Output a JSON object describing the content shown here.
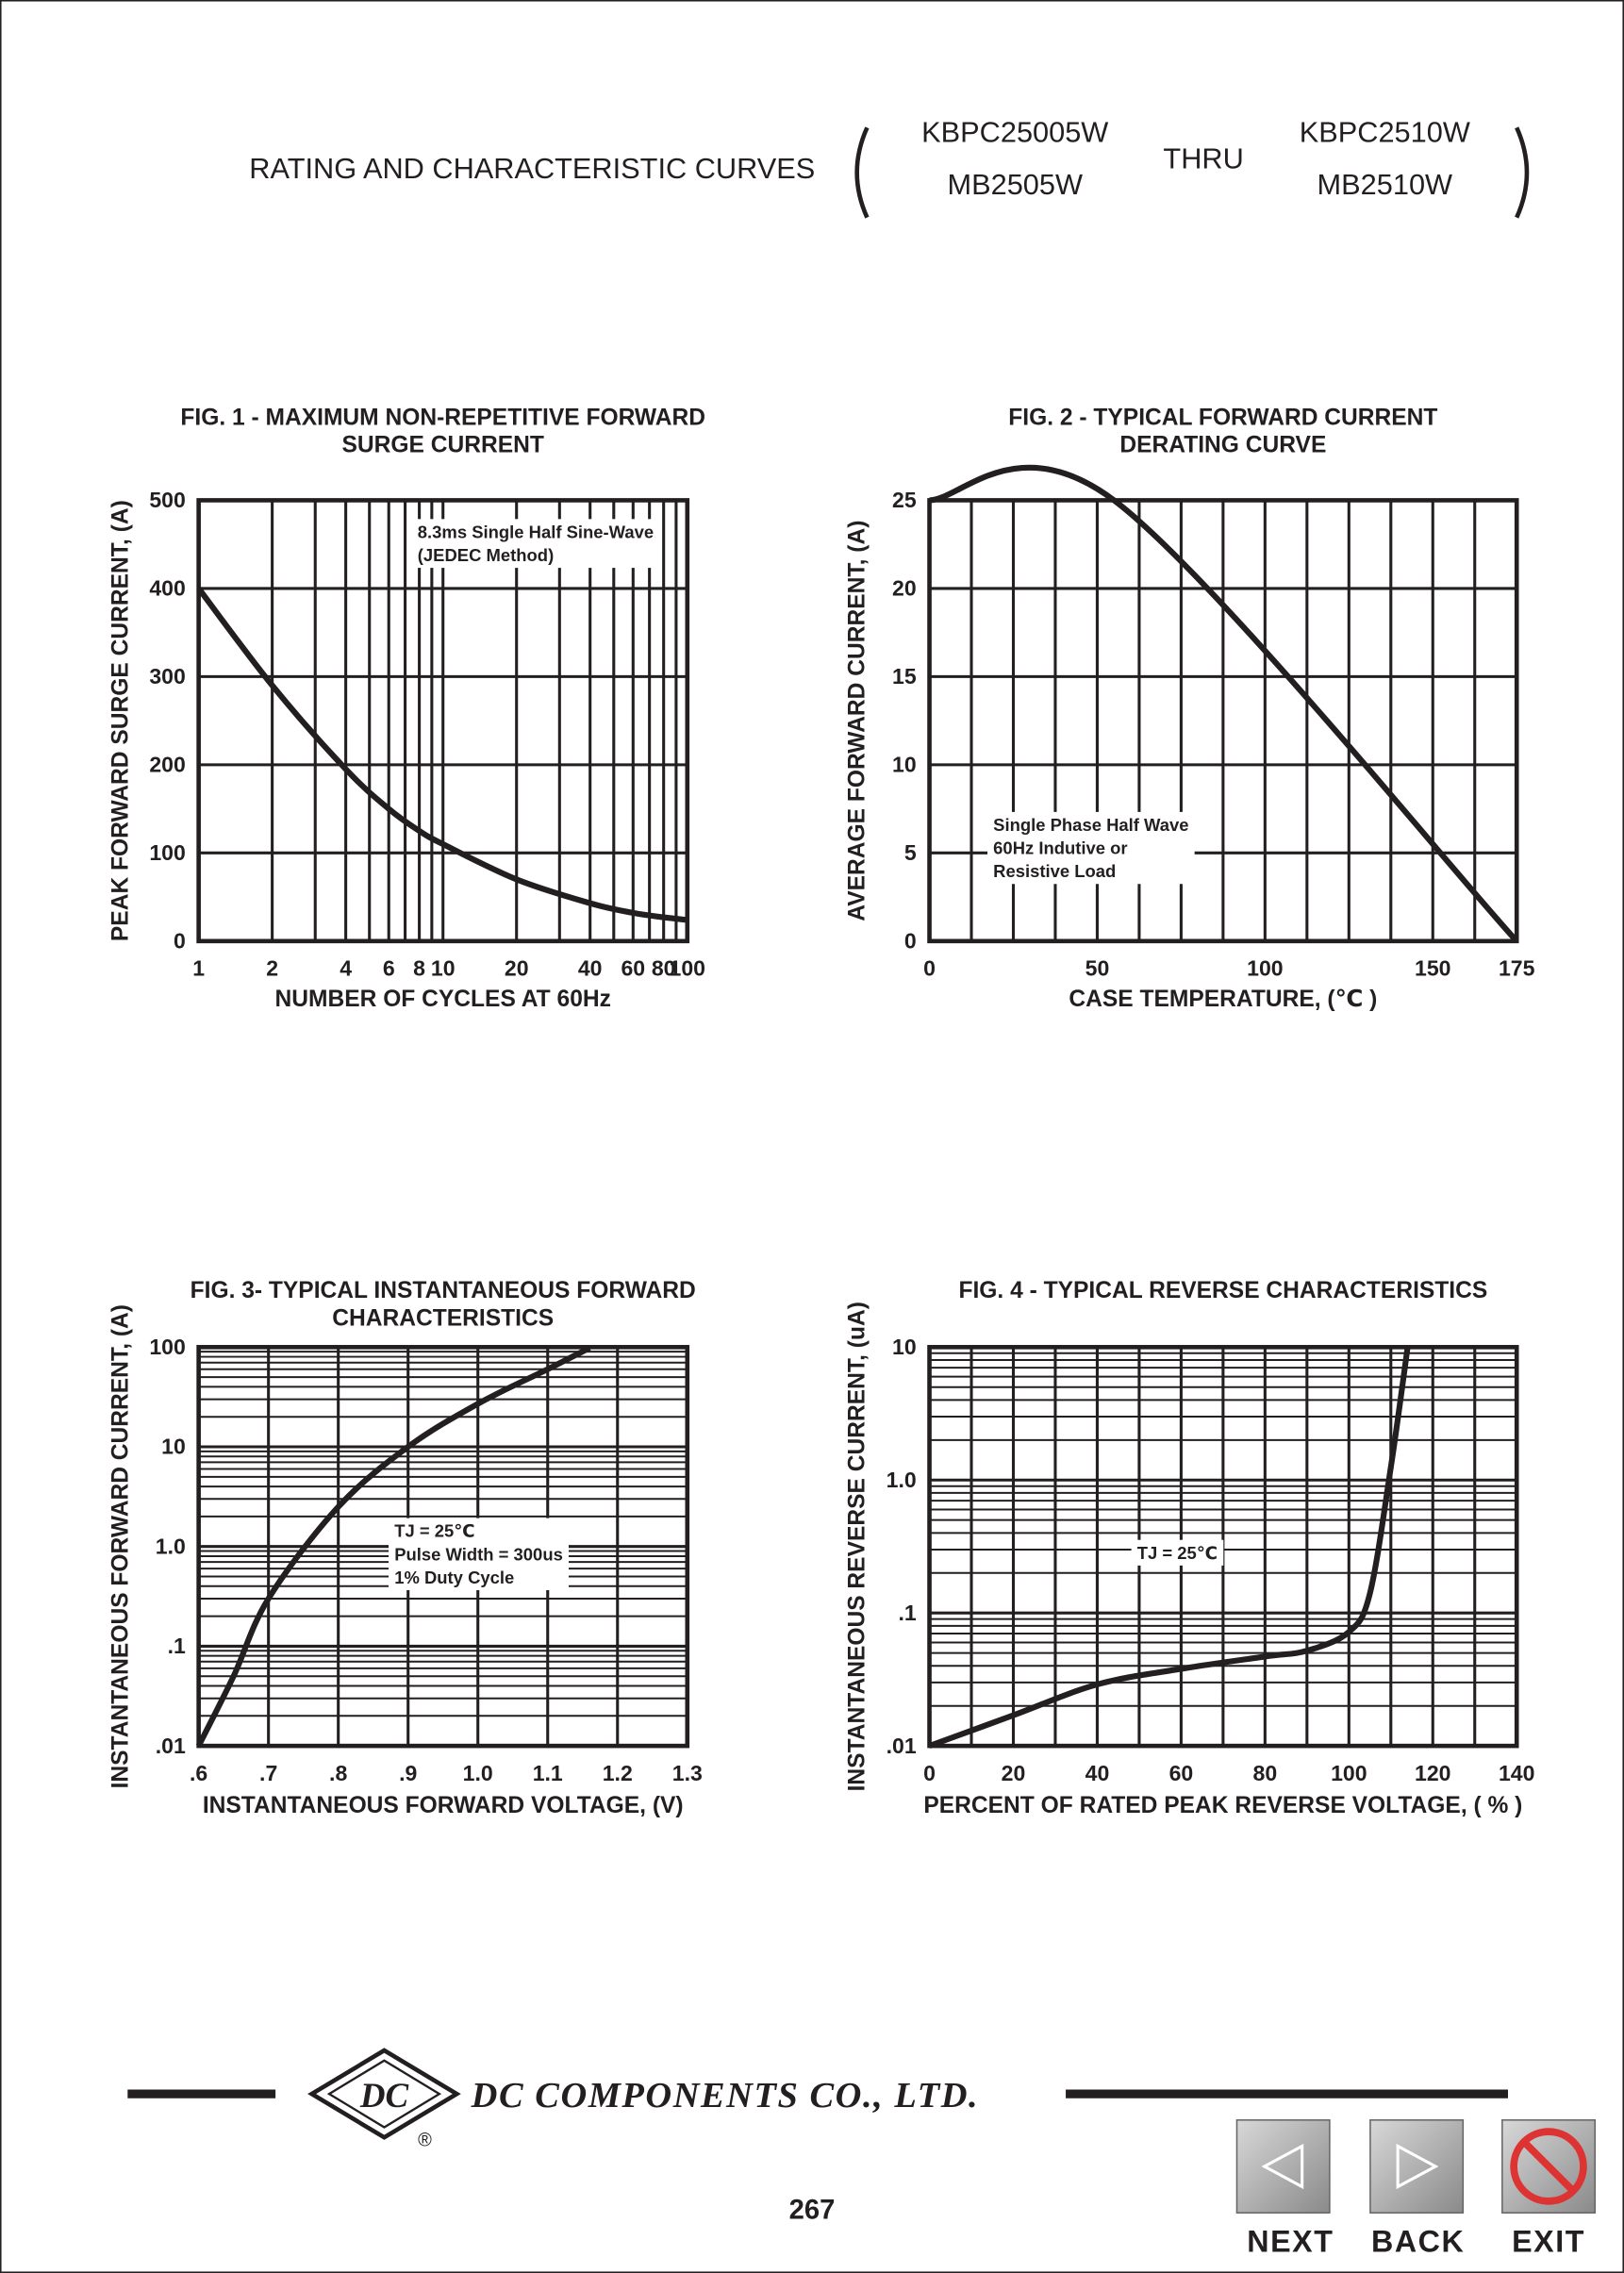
{
  "header": {
    "title": "RATING AND CHARACTERISTIC CURVES",
    "part_from_1": "KBPC25005W",
    "part_from_2": "MB2505W",
    "thru": "THRU",
    "part_to_1": "KBPC2510W",
    "part_to_2": "MB2510W"
  },
  "chart_data": [
    {
      "type": "line",
      "title": [
        "FIG. 1 - MAXIMUM NON-REPETITIVE FORWARD",
        "SURGE CURRENT"
      ],
      "xlabel": "NUMBER OF CYCLES AT 60Hz",
      "ylabel": "PEAK FORWARD SURGE CURRENT, (A)",
      "annotation": [
        "8.3ms Single Half Sine-Wave",
        "(JEDEC Method)"
      ],
      "xlog": true,
      "xlim": [
        1,
        100
      ],
      "xticks": [
        1,
        2,
        4,
        6,
        8,
        10,
        20,
        40,
        60,
        80,
        100
      ],
      "xminor": [
        3,
        5,
        7,
        9,
        30,
        50,
        70,
        90
      ],
      "ylim": [
        0,
        500
      ],
      "yticks": [
        0,
        100,
        200,
        300,
        400,
        500
      ],
      "grid": true,
      "color": "#231f20",
      "x": [
        1,
        2,
        4,
        6,
        8,
        10,
        20,
        40,
        60,
        80,
        100
      ],
      "values": [
        400,
        290,
        195,
        150,
        125,
        110,
        70,
        43,
        32,
        27,
        24
      ]
    },
    {
      "type": "line",
      "title": [
        "FIG. 2 - TYPICAL FORWARD CURRENT",
        "DERATING CURVE"
      ],
      "xlabel": "CASE TEMPERATURE, (℃ )",
      "ylabel": "AVERAGE FORWARD  CURRENT, (A)",
      "annotation": [
        "Single Phase Half Wave",
        "60Hz Indutive or",
        "Resistive Load"
      ],
      "xlim": [
        0,
        175
      ],
      "xticks": [
        0,
        50,
        100,
        150,
        175
      ],
      "xminor": [
        12.5,
        25,
        37.5,
        62.5,
        75,
        87.5,
        112.5,
        125,
        137.5,
        162.5
      ],
      "ylim": [
        0,
        25
      ],
      "yticks": [
        0,
        5,
        10,
        15,
        20,
        25
      ],
      "grid": true,
      "color": "#231f20",
      "x": [
        0,
        55,
        175
      ],
      "values": [
        25,
        25,
        0
      ]
    },
    {
      "type": "line",
      "title": [
        "FIG. 3- TYPICAL INSTANTANEOUS FORWARD",
        "CHARACTERISTICS"
      ],
      "xlabel": "INSTANTANEOUS FORWARD VOLTAGE, (V)",
      "ylabel": "INSTANTANEOUS FORWARD CURRENT, (A)",
      "annotation": [
        "TJ = 25℃",
        "Pulse Width = 300us",
        "1% Duty Cycle"
      ],
      "xlim": [
        0.6,
        1.3
      ],
      "xticks": [
        {
          "value": 0.6,
          "label": ".6"
        },
        {
          "value": 0.7,
          "label": ".7"
        },
        {
          "value": 0.8,
          "label": ".8"
        },
        {
          "value": 0.9,
          "label": ".9"
        },
        {
          "value": 1,
          "label": "1.0"
        },
        1.1,
        1.2,
        1.3
      ],
      "ylog": true,
      "ylim": [
        0.01,
        100
      ],
      "yticks": [
        {
          "value": 0.01,
          "label": ".01"
        },
        {
          "value": 0.1,
          "label": ".1"
        },
        {
          "value": 1,
          "label": "1.0"
        },
        10,
        100
      ],
      "yminor": [
        0.02,
        0.03,
        0.04,
        0.05,
        0.06,
        0.07,
        0.08,
        0.09,
        0.2,
        0.3,
        0.4,
        0.5,
        0.6,
        0.7,
        0.8,
        0.9,
        2,
        3,
        4,
        5,
        6,
        7,
        8,
        9,
        20,
        30,
        40,
        50,
        60,
        70,
        80,
        90
      ],
      "grid": true,
      "color": "#231f20",
      "x": [
        0.6,
        0.65,
        0.7,
        0.8,
        0.9,
        1,
        1.1,
        1.16
      ],
      "values": [
        0.01,
        0.05,
        0.3,
        2.5,
        10,
        27,
        60,
        98
      ]
    },
    {
      "type": "line",
      "title": [
        "FIG. 4 - TYPICAL REVERSE CHARACTERISTICS"
      ],
      "xlabel": "PERCENT OF RATED PEAK REVERSE VOLTAGE, ( % )",
      "ylabel": "INSTANTANEOUS REVERSE CURRENT, (uA)",
      "annotation": [
        "TJ = 25℃"
      ],
      "xlim": [
        0,
        140
      ],
      "xticks": [
        0,
        20,
        40,
        60,
        80,
        100,
        120,
        140
      ],
      "xminor": [
        10,
        30,
        50,
        70,
        90,
        110,
        130
      ],
      "ylog": true,
      "ylim": [
        0.01,
        10
      ],
      "yticks": [
        {
          "value": 0.01,
          "label": ".01"
        },
        {
          "value": 0.1,
          "label": ".1"
        },
        {
          "value": 1,
          "label": "1.0"
        },
        10
      ],
      "yminor": [
        0.02,
        0.03,
        0.04,
        0.05,
        0.06,
        0.07,
        0.08,
        0.09,
        0.2,
        0.3,
        0.4,
        0.5,
        0.6,
        0.7,
        0.8,
        0.9,
        2,
        3,
        4,
        5,
        6,
        7,
        8,
        9
      ],
      "grid": true,
      "color": "#231f20",
      "x": [
        0,
        20,
        40,
        60,
        80,
        90,
        100,
        105,
        110,
        114
      ],
      "values": [
        0.01,
        0.017,
        0.029,
        0.038,
        0.047,
        0.052,
        0.072,
        0.14,
        1.25,
        10
      ]
    }
  ],
  "footer": {
    "logo": "DC",
    "company": "DC COMPONENTS CO., LTD.",
    "registered": "®",
    "page_number": "267",
    "buttons": [
      "NEXT",
      "BACK",
      "EXIT"
    ]
  }
}
